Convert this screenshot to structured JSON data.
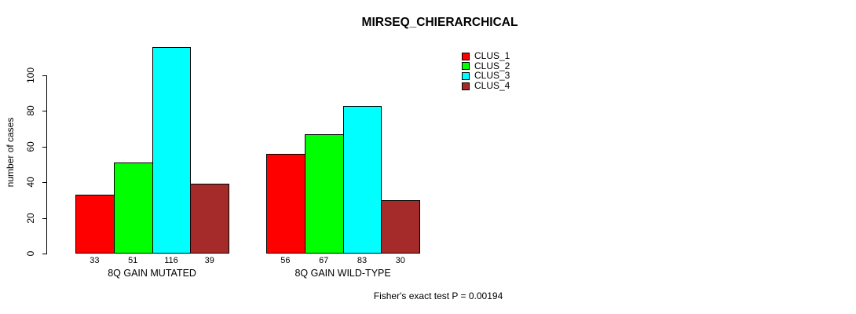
{
  "chart_data": {
    "type": "bar",
    "title": "MIRSEQ_CHIERARCHICAL",
    "ylabel": "number of cases",
    "xlabel": "",
    "categories": [
      "8Q GAIN MUTATED",
      "8Q GAIN WILD-TYPE"
    ],
    "series": [
      {
        "name": "CLUS_1",
        "color": "#FF0000",
        "values": [
          33,
          56
        ]
      },
      {
        "name": "CLUS_2",
        "color": "#00FF00",
        "values": [
          51,
          67
        ]
      },
      {
        "name": "CLUS_3",
        "color": "#00FFFF",
        "values": [
          116,
          83
        ]
      },
      {
        "name": "CLUS_4",
        "color": "#A52A2A",
        "values": [
          39,
          30
        ]
      }
    ],
    "bar_value_labels": [
      [
        33,
        51,
        116,
        39
      ],
      [
        56,
        67,
        83,
        30
      ]
    ],
    "yticks": [
      0,
      20,
      40,
      60,
      80,
      100
    ],
    "ylim": [
      0,
      100
    ],
    "grid": false,
    "legend_position": "top-right",
    "annotation": "Fisher's exact test P = 0.00194"
  }
}
